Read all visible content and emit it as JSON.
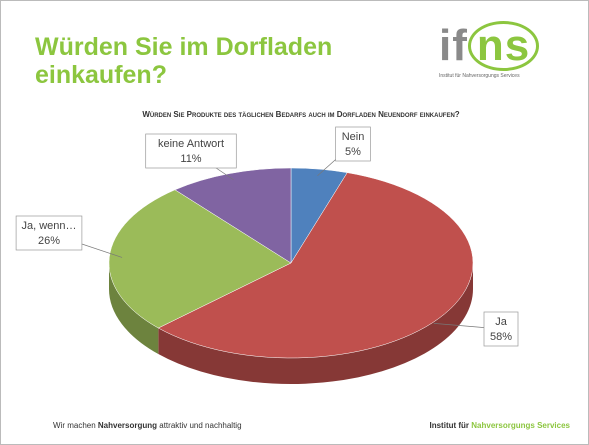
{
  "slide": {
    "title": "Würden Sie im Dorfladen einkaufen?",
    "logo": {
      "left": "if",
      "right": "ns",
      "tagline": "Institut für Nahversorgungs Services"
    },
    "footer": {
      "left_pre": "Wir machen ",
      "left_bold": "Nahversorgung",
      "left_post": " attraktiv und nachhaltig",
      "right_bold": "Institut für ",
      "right_green": "Nahversorgungs Services"
    }
  },
  "chart_data": {
    "type": "pie",
    "title": "Würden Sie Produkte des täglichen Bedarfs auch im Dorfladen Neuendorf einkaufen?",
    "categories": [
      "Nein",
      "Ja",
      "Ja, wenn…",
      "keine Antwort"
    ],
    "values": [
      5,
      58,
      26,
      11
    ],
    "value_labels": [
      "5%",
      "58%",
      "26%",
      "11%"
    ],
    "colors": [
      "#4f81bd",
      "#c0504d",
      "#9bbb59",
      "#8064a2"
    ]
  }
}
